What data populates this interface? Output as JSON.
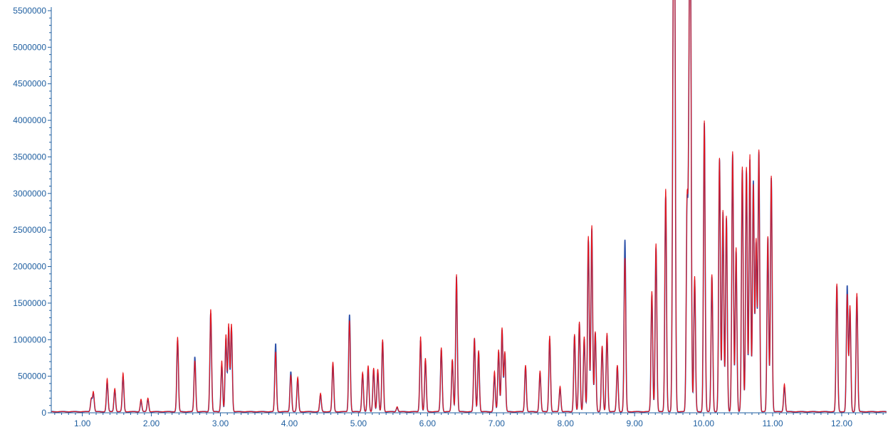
{
  "chart_data": {
    "type": "line",
    "title": "",
    "xlabel": "",
    "ylabel": "",
    "xlim": [
      0.55,
      12.65
    ],
    "ylim": [
      0,
      5500000
    ],
    "grid": false,
    "x_ticks": [
      "1.00",
      "2.00",
      "3.00",
      "4.00",
      "5.00",
      "6.00",
      "7.00",
      "8.00",
      "9.00",
      "10.00",
      "11.00",
      "12.00"
    ],
    "x_tick_values": [
      1,
      2,
      3,
      4,
      5,
      6,
      7,
      8,
      9,
      10,
      11,
      12
    ],
    "y_ticks": [
      "0",
      "500000",
      "1000000",
      "1500000",
      "2000000",
      "2500000",
      "3000000",
      "3500000",
      "4000000",
      "4500000",
      "5000000",
      "5500000"
    ],
    "y_tick_values": [
      0,
      500000,
      1000000,
      1500000,
      2000000,
      2500000,
      3000000,
      3500000,
      4000000,
      4500000,
      5000000,
      5500000
    ],
    "baseline": 15000,
    "series": [
      {
        "color": "#2b4fa8",
        "peaks": [
          [
            1.13,
            170000
          ],
          [
            1.16,
            250000
          ],
          [
            1.36,
            400000
          ],
          [
            1.47,
            300000
          ],
          [
            1.59,
            480000
          ],
          [
            1.85,
            150000
          ],
          [
            1.95,
            170000
          ],
          [
            2.38,
            980000
          ],
          [
            2.63,
            750000
          ],
          [
            2.86,
            1350000
          ],
          [
            3.02,
            650000
          ],
          [
            3.08,
            1000000
          ],
          [
            3.12,
            1150000
          ],
          [
            3.16,
            1150000
          ],
          [
            3.8,
            930000
          ],
          [
            4.02,
            550000
          ],
          [
            4.12,
            450000
          ],
          [
            4.45,
            230000
          ],
          [
            4.63,
            650000
          ],
          [
            4.87,
            1330000
          ],
          [
            5.06,
            520000
          ],
          [
            5.14,
            600000
          ],
          [
            5.22,
            580000
          ],
          [
            5.28,
            550000
          ],
          [
            5.35,
            960000
          ],
          [
            5.56,
            60000
          ],
          [
            5.9,
            980000
          ],
          [
            5.97,
            700000
          ],
          [
            6.2,
            850000
          ],
          [
            6.36,
            700000
          ],
          [
            6.42,
            1850000
          ],
          [
            6.68,
            1000000
          ],
          [
            6.74,
            820000
          ],
          [
            6.97,
            500000
          ],
          [
            7.03,
            820000
          ],
          [
            7.08,
            1120000
          ],
          [
            7.12,
            800000
          ],
          [
            7.42,
            620000
          ],
          [
            7.63,
            540000
          ],
          [
            7.77,
            1000000
          ],
          [
            7.92,
            330000
          ],
          [
            8.13,
            1040000
          ],
          [
            8.2,
            1200000
          ],
          [
            8.27,
            1000000
          ],
          [
            8.33,
            2350000
          ],
          [
            8.38,
            2500000
          ],
          [
            8.43,
            1080000
          ],
          [
            8.53,
            880000
          ],
          [
            8.6,
            1050000
          ],
          [
            8.75,
            620000
          ],
          [
            8.86,
            2350000
          ],
          [
            9.25,
            1600000
          ],
          [
            9.31,
            2250000
          ],
          [
            9.45,
            2950000
          ],
          [
            9.56,
            4800000
          ],
          [
            9.58,
            5500000
          ],
          [
            9.76,
            2750000
          ],
          [
            9.79,
            3850000
          ],
          [
            9.81,
            5400000
          ],
          [
            9.87,
            1800000
          ],
          [
            10.01,
            3950000
          ],
          [
            10.12,
            1850000
          ],
          [
            10.23,
            3450000
          ],
          [
            10.28,
            2730000
          ],
          [
            10.33,
            2650000
          ],
          [
            10.42,
            3520000
          ],
          [
            10.47,
            2200000
          ],
          [
            10.56,
            3300000
          ],
          [
            10.62,
            3300000
          ],
          [
            10.67,
            3450000
          ],
          [
            10.72,
            3150000
          ],
          [
            10.76,
            2300000
          ],
          [
            10.8,
            3550000
          ],
          [
            10.93,
            2380000
          ],
          [
            10.98,
            3200000
          ],
          [
            11.17,
            350000
          ],
          [
            11.93,
            1720000
          ],
          [
            12.08,
            1720000
          ],
          [
            12.12,
            1400000
          ],
          [
            12.22,
            1580000
          ]
        ]
      },
      {
        "color": "#e8141a",
        "peaks": [
          [
            1.13,
            180000
          ],
          [
            1.16,
            270000
          ],
          [
            1.36,
            450000
          ],
          [
            1.47,
            320000
          ],
          [
            1.59,
            530000
          ],
          [
            1.85,
            170000
          ],
          [
            1.95,
            190000
          ],
          [
            2.38,
            1020000
          ],
          [
            2.63,
            700000
          ],
          [
            2.86,
            1400000
          ],
          [
            3.02,
            700000
          ],
          [
            3.08,
            1050000
          ],
          [
            3.12,
            1200000
          ],
          [
            3.16,
            1200000
          ],
          [
            3.8,
            820000
          ],
          [
            4.02,
            500000
          ],
          [
            4.12,
            470000
          ],
          [
            4.45,
            250000
          ],
          [
            4.63,
            680000
          ],
          [
            4.87,
            1250000
          ],
          [
            5.06,
            540000
          ],
          [
            5.14,
            630000
          ],
          [
            5.22,
            600000
          ],
          [
            5.28,
            580000
          ],
          [
            5.35,
            990000
          ],
          [
            5.56,
            70000
          ],
          [
            5.9,
            1030000
          ],
          [
            5.97,
            730000
          ],
          [
            6.2,
            880000
          ],
          [
            6.36,
            720000
          ],
          [
            6.42,
            1880000
          ],
          [
            6.68,
            1010000
          ],
          [
            6.74,
            840000
          ],
          [
            6.97,
            550000
          ],
          [
            7.03,
            850000
          ],
          [
            7.08,
            1150000
          ],
          [
            7.12,
            820000
          ],
          [
            7.42,
            640000
          ],
          [
            7.63,
            560000
          ],
          [
            7.77,
            1040000
          ],
          [
            7.92,
            350000
          ],
          [
            8.13,
            1060000
          ],
          [
            8.2,
            1230000
          ],
          [
            8.27,
            1030000
          ],
          [
            8.33,
            2400000
          ],
          [
            8.38,
            2550000
          ],
          [
            8.43,
            1100000
          ],
          [
            8.53,
            900000
          ],
          [
            8.6,
            1080000
          ],
          [
            8.75,
            640000
          ],
          [
            8.86,
            2100000
          ],
          [
            9.25,
            1650000
          ],
          [
            9.31,
            2300000
          ],
          [
            9.45,
            3050000
          ],
          [
            9.56,
            4780000
          ],
          [
            9.58,
            5510000
          ],
          [
            9.76,
            2820000
          ],
          [
            9.79,
            3880000
          ],
          [
            9.81,
            5150000
          ],
          [
            9.87,
            1850000
          ],
          [
            10.01,
            3980000
          ],
          [
            10.12,
            1880000
          ],
          [
            10.23,
            3470000
          ],
          [
            10.28,
            2760000
          ],
          [
            10.33,
            2680000
          ],
          [
            10.42,
            3560000
          ],
          [
            10.47,
            2250000
          ],
          [
            10.56,
            3350000
          ],
          [
            10.62,
            3350000
          ],
          [
            10.67,
            3520000
          ],
          [
            10.72,
            3100000
          ],
          [
            10.76,
            2350000
          ],
          [
            10.8,
            3580000
          ],
          [
            10.93,
            2400000
          ],
          [
            10.98,
            3230000
          ],
          [
            11.17,
            380000
          ],
          [
            11.93,
            1750000
          ],
          [
            12.08,
            1600000
          ],
          [
            12.12,
            1450000
          ],
          [
            12.22,
            1620000
          ]
        ]
      }
    ]
  }
}
